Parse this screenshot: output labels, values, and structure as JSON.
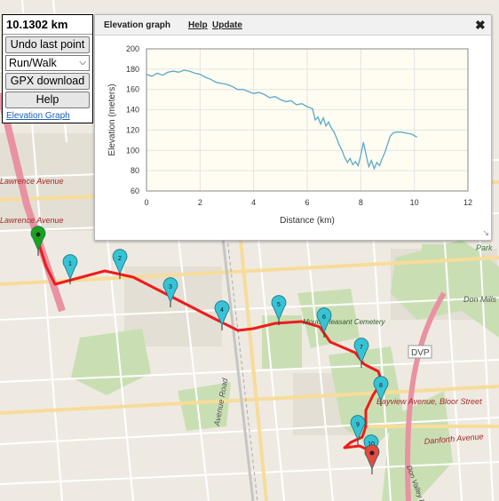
{
  "controls": {
    "distance": "10.1302 km",
    "undo_label": "Undo last point",
    "mode_value": "Run/Walk",
    "gpx_label": "GPX download",
    "help_label": "Help",
    "elevation_link": "Elevation Graph"
  },
  "panel": {
    "title": "Elevation graph",
    "help_link": "Help",
    "update_link": "Update",
    "close_glyph": "✖"
  },
  "chart_data": {
    "type": "line",
    "xlabel": "Distance (km)",
    "ylabel": "Elevation (meters)",
    "xlim": [
      0,
      12
    ],
    "ylim": [
      60,
      200
    ],
    "xticks": [
      0,
      2,
      4,
      6,
      8,
      10,
      12
    ],
    "yticks": [
      60,
      80,
      100,
      120,
      140,
      160,
      180,
      200
    ],
    "grid": true,
    "line_color": "#5aa9c8",
    "series": [
      {
        "x": [
          0,
          0.2,
          0.4,
          0.6,
          0.8,
          1.0,
          1.2,
          1.4,
          1.6,
          1.8,
          2.0,
          2.2,
          2.4,
          2.6,
          2.8,
          3.0,
          3.2,
          3.4,
          3.6,
          3.8,
          4.0,
          4.2,
          4.4,
          4.6,
          4.8,
          5.0,
          5.2,
          5.4,
          5.6,
          5.8,
          6.0,
          6.2,
          6.3,
          6.4,
          6.5,
          6.6,
          6.7,
          6.8,
          6.9,
          7.0,
          7.1,
          7.2,
          7.3,
          7.4,
          7.5,
          7.6,
          7.7,
          7.8,
          7.9,
          8.0,
          8.1,
          8.2,
          8.3,
          8.4,
          8.5,
          8.6,
          8.7,
          8.8,
          8.9,
          9.0,
          9.1,
          9.2,
          9.3,
          9.5,
          9.7,
          9.9,
          10.1
        ],
        "y": [
          175,
          173,
          176,
          174,
          177,
          178,
          177,
          179,
          178,
          176,
          175,
          172,
          170,
          167,
          166,
          165,
          163,
          160,
          160,
          158,
          156,
          157,
          155,
          152,
          153,
          150,
          148,
          149,
          145,
          146,
          143,
          141,
          130,
          133,
          126,
          132,
          124,
          128,
          122,
          118,
          112,
          105,
          100,
          93,
          88,
          92,
          86,
          89,
          85,
          95,
          108,
          95,
          84,
          90,
          82,
          88,
          85,
          92,
          98,
          106,
          114,
          117,
          118,
          118,
          117,
          116,
          113
        ]
      }
    ]
  },
  "map": {
    "street_labels": [
      "Lawrence Avenue",
      "Lawrence Avenue",
      "Bayview Avenue, Bloor Street",
      "Danforth Avenue",
      "Don Mills",
      "Park",
      "DVP",
      "Avenue Road",
      "Mount Pleasant Cemetery",
      "Don Valley Pkwy"
    ],
    "markers": [
      "1",
      "2",
      "3",
      "4",
      "5",
      "6",
      "7",
      "8",
      "9",
      "10"
    ],
    "route_color": "#ee1c1c",
    "marker_color": "#37c3d6",
    "start_color": "#1aa31a",
    "end_color": "#e8483c"
  }
}
